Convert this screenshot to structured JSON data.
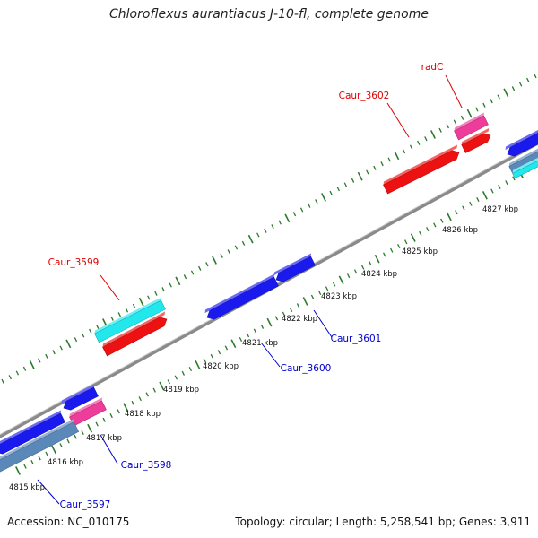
{
  "title": "Chloroflexus aurantiacus J-10-fl, complete genome",
  "accession_text": "Accession: NC_010175",
  "topology_text": "Topology: circular; Length: 5,258,541 bp; Genes: 3,911",
  "colors": {
    "backbone": "#8a8a8a",
    "ticks": "#2a7a2a",
    "cds_blue": "#1a1aee",
    "cds_red": "#ee1111",
    "rna_pink": "#ee3c9a",
    "cyan": "#22e8ee",
    "steelblue": "#5a88b8",
    "label_red": "#dd0000",
    "label_blue": "#0000cc"
  },
  "scale_labels": [
    "4815 kbp",
    "4816 kbp",
    "4817 kbp",
    "4818 kbp",
    "4819 kbp",
    "4820 kbp",
    "4821 kbp",
    "4822 kbp",
    "4823 kbp",
    "4824 kbp",
    "4825 kbp",
    "4826 kbp",
    "4827 kbp"
  ],
  "features": [
    {
      "name": "Caur_3599",
      "color": "cds_red",
      "label_color": "label_red"
    },
    {
      "name": "Caur_3602",
      "color": "cds_red",
      "label_color": "label_red"
    },
    {
      "name": "radC",
      "color": "rna_pink",
      "label_color": "label_red"
    },
    {
      "name": "Caur_3597",
      "color": "cds_blue",
      "label_color": "label_blue"
    },
    {
      "name": "Caur_3598",
      "color": "cds_blue",
      "label_color": "label_blue"
    },
    {
      "name": "Caur_3600",
      "color": "cds_blue",
      "label_color": "label_blue"
    },
    {
      "name": "Caur_3601",
      "color": "cds_blue",
      "label_color": "label_blue"
    }
  ]
}
